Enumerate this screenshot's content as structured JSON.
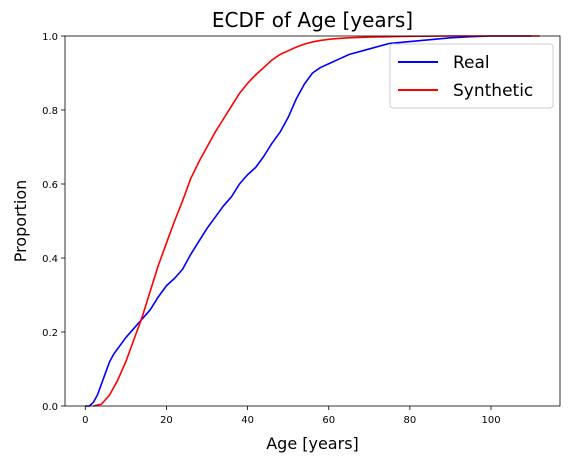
{
  "chart_data": {
    "type": "line",
    "title": "ECDF of Age [years]",
    "xlabel": "Age [years]",
    "ylabel": "Proportion",
    "xlim": [
      -5,
      117
    ],
    "ylim": [
      0,
      1.0
    ],
    "xticks": [
      0,
      20,
      40,
      60,
      80,
      100
    ],
    "xtick_labels": [
      "0",
      "20",
      "40",
      "60",
      "80",
      "100"
    ],
    "yticks": [
      0,
      0.2,
      0.4,
      0.6,
      0.8,
      1.0
    ],
    "ytick_labels": [
      "0.0",
      "0.2",
      "0.4",
      "0.6",
      "0.8",
      "1.0"
    ],
    "grid": false,
    "legend_position": "top-right",
    "series": [
      {
        "name": "Real",
        "color": "#0000ff",
        "x": [
          0,
          1,
          2,
          3,
          4,
          5,
          6,
          7,
          8,
          10,
          12,
          14,
          16,
          18,
          20,
          22,
          24,
          26,
          28,
          30,
          32,
          34,
          36,
          38,
          40,
          42,
          44,
          46,
          48,
          50,
          52,
          54,
          56,
          58,
          60,
          62,
          65,
          70,
          75,
          80,
          85,
          90,
          95,
          100,
          110
        ],
        "y": [
          0.0,
          0.0,
          0.01,
          0.03,
          0.06,
          0.09,
          0.12,
          0.14,
          0.155,
          0.185,
          0.21,
          0.235,
          0.26,
          0.295,
          0.325,
          0.345,
          0.37,
          0.41,
          0.445,
          0.48,
          0.51,
          0.54,
          0.565,
          0.6,
          0.625,
          0.645,
          0.675,
          0.71,
          0.74,
          0.78,
          0.83,
          0.87,
          0.9,
          0.915,
          0.925,
          0.935,
          0.95,
          0.965,
          0.98,
          0.985,
          0.99,
          0.995,
          0.998,
          1.0,
          1.0
        ]
      },
      {
        "name": "Synthetic",
        "color": "#ff0000",
        "x": [
          2,
          4,
          6,
          8,
          10,
          12,
          14,
          16,
          18,
          20,
          22,
          24,
          26,
          28,
          30,
          32,
          34,
          36,
          38,
          40,
          42,
          44,
          46,
          48,
          50,
          52,
          54,
          56,
          58,
          60,
          62,
          65,
          70,
          75,
          80,
          90,
          100,
          112
        ],
        "y": [
          0.0,
          0.005,
          0.03,
          0.07,
          0.12,
          0.18,
          0.24,
          0.31,
          0.38,
          0.44,
          0.5,
          0.555,
          0.615,
          0.66,
          0.7,
          0.74,
          0.775,
          0.81,
          0.845,
          0.872,
          0.895,
          0.915,
          0.935,
          0.95,
          0.96,
          0.97,
          0.978,
          0.984,
          0.988,
          0.991,
          0.993,
          0.995,
          0.997,
          0.998,
          0.999,
          1.0,
          1.0,
          1.0
        ]
      }
    ]
  }
}
